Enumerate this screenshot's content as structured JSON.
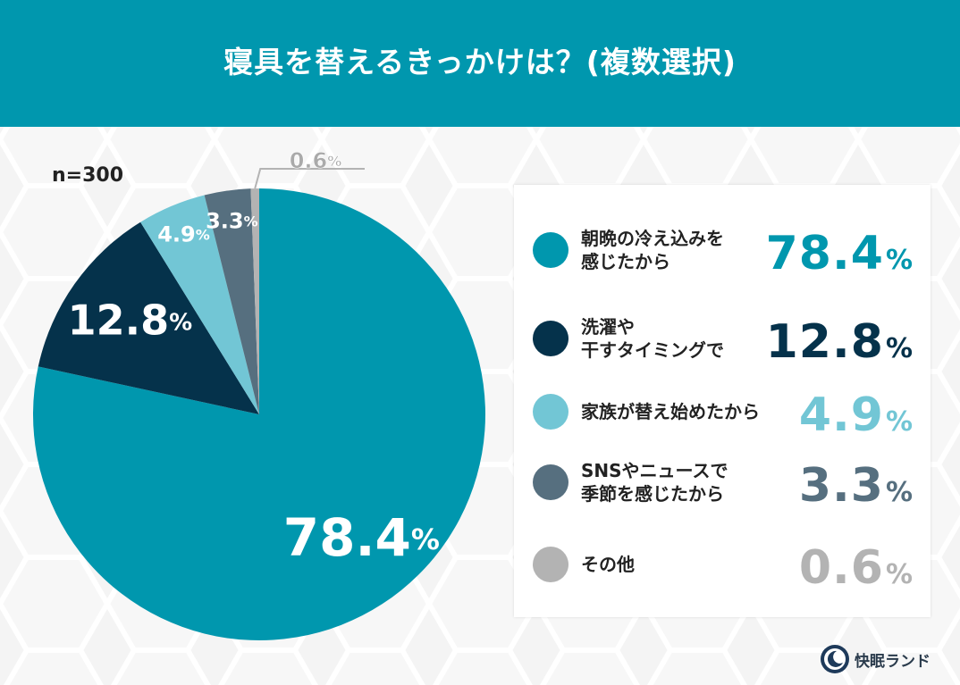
{
  "title": "寝具を替えるきっかけは？(複数選択)",
  "sample_size": "n=300",
  "chart_data": {
    "type": "pie",
    "title": "寝具を替えるきっかけは？(複数選択)",
    "unit": "%",
    "series": [
      {
        "name": "朝晩の冷え込みを感じたから",
        "value": 78.4,
        "color": "#0097ae",
        "value_label": "78.4"
      },
      {
        "name": "洗濯や干すタイミングで",
        "value": 12.8,
        "color": "#05324b",
        "value_label": "12.8"
      },
      {
        "name": "家族が替え始めたから",
        "value": 4.9,
        "color": "#72c6d5",
        "value_label": "4.9"
      },
      {
        "name": "SNSやニュースで季節を感じたから",
        "value": 3.3,
        "color": "#566f7f",
        "value_label": "3.3"
      },
      {
        "name": "その他",
        "value": 0.6,
        "color": "#b3b3b3",
        "value_label": "0.6"
      }
    ],
    "legend_position": "right"
  },
  "legend": {
    "items": [
      {
        "label": "朝晩の冷え込みを\n感じたから",
        "value": "78.4",
        "pct": "%",
        "color": "#0097ae"
      },
      {
        "label": "洗濯や\n干すタイミングで",
        "value": "12.8",
        "pct": "%",
        "color": "#05324b"
      },
      {
        "label": "家族が替え始めたから",
        "value": "4.9",
        "pct": "%",
        "color": "#72c6d5"
      },
      {
        "label": "SNSやニュースで\n季節を感じたから",
        "value": "3.3",
        "pct": "%",
        "color": "#566f7f"
      },
      {
        "label": "その他",
        "value": "0.6",
        "pct": "%",
        "color": "#b3b3b3"
      }
    ]
  },
  "brand": {
    "name": "快眠ランド",
    "icon": "sleep-moon-logo-icon"
  }
}
